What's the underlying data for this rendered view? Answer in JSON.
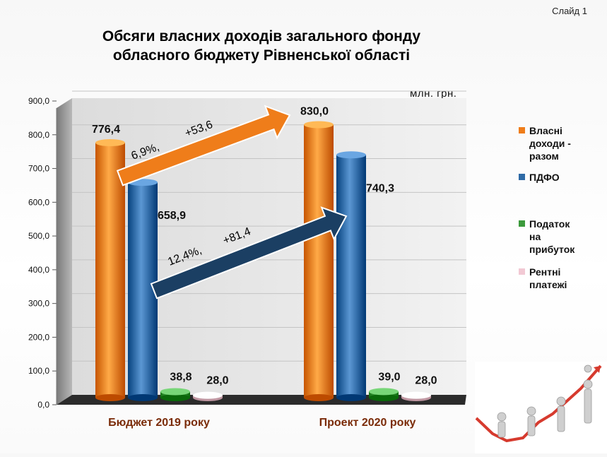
{
  "slide_label": "Слайд 1",
  "unit_label": "млн. грн.",
  "chart_data": {
    "type": "bar",
    "title_lines": [
      "Обсяги власних доходів загального фонду",
      "обласного бюджету  Рівненської області"
    ],
    "categories": [
      "Бюджет 2019 року",
      "Проект 2020 року"
    ],
    "series": [
      {
        "name": "Власні доходи - разом",
        "color": "#ef7d1a",
        "values": [
          776.4,
          830.0
        ],
        "labels": [
          "776,4",
          "830,0"
        ]
      },
      {
        "name": "ПДФО",
        "color": "#2e6aa6",
        "values": [
          658.9,
          740.3
        ],
        "labels": [
          "658,9",
          "740,3"
        ]
      },
      {
        "name": "Податок на прибуток",
        "color": "#3c9a3c",
        "values": [
          38.8,
          39.0
        ],
        "labels": [
          "38,8",
          "39,0"
        ]
      },
      {
        "name": "Рентні платежі",
        "color": "#f2c9d4",
        "values": [
          28.0,
          28.0
        ],
        "labels": [
          "28,0",
          "28,0"
        ]
      }
    ],
    "ylim": [
      0,
      900
    ],
    "yticks": [
      "0,0",
      "100,0",
      "200,0",
      "300,0",
      "400,0",
      "500,0",
      "600,0",
      "700,0",
      "800,0",
      "900,0"
    ],
    "legend_position": "right",
    "annotations": [
      {
        "series": "Власні доходи - разом",
        "percent": "6,9%,",
        "delta": "+53,6",
        "color": "#ef7d1a"
      },
      {
        "series": "ПДФО",
        "percent": "12,4%,",
        "delta": "+81,4",
        "color": "#1b3f63"
      }
    ]
  },
  "legend": [
    {
      "lines": [
        "Власні",
        "доходи -",
        "разом"
      ],
      "color": "#ef7d1a"
    },
    {
      "lines": [
        "ПДФО"
      ],
      "color": "#2e6aa6"
    },
    {
      "lines": [
        "Податок",
        "на",
        "прибуток"
      ],
      "color": "#3c9a3c"
    },
    {
      "lines": [
        "Рентні",
        "платежі"
      ],
      "color": "#f2c9d4"
    }
  ],
  "decorative_image": "growth-chart-people-illustration"
}
